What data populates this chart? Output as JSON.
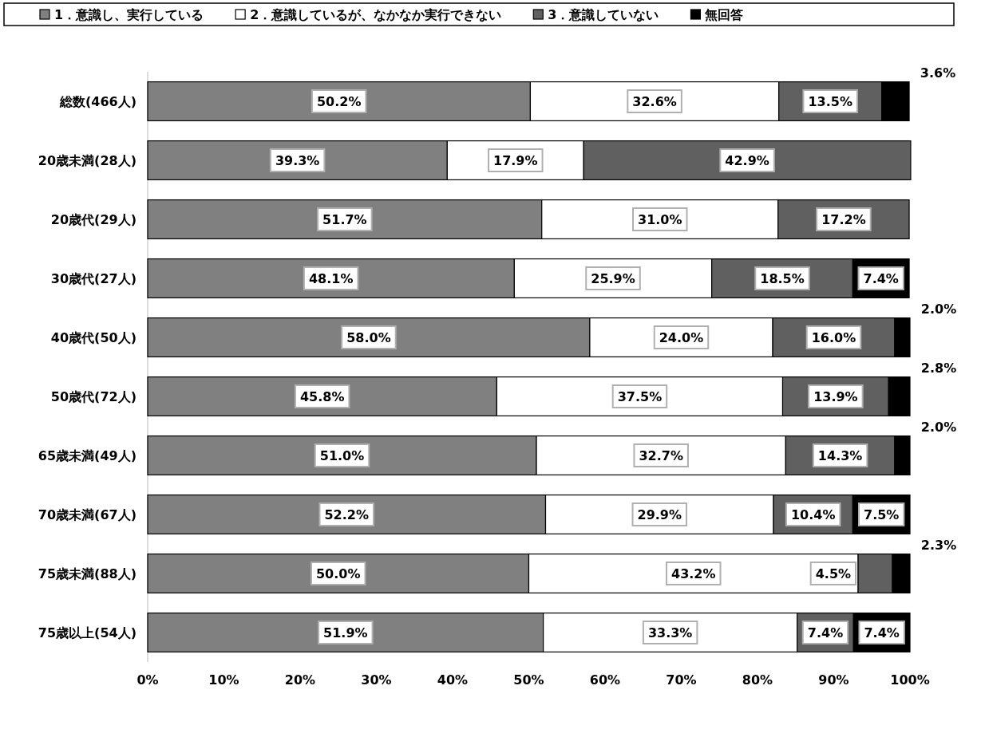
{
  "chart_data": {
    "type": "bar",
    "orientation": "horizontal",
    "stacked": true,
    "legend": "top",
    "categories": [
      "総数(466人)",
      "20歳未満(28人)",
      "20歳代(29人)",
      "30歳代(27人)",
      "40歳代(50人)",
      "50歳代(72人)",
      "65歳未満(49人)",
      "70歳未満(67人)",
      "75歳未満(88人)",
      "75歳以上(54人)"
    ],
    "xlim": [
      0,
      100
    ],
    "xticks": [
      {
        "value": 0,
        "label": "0%"
      },
      {
        "value": 10,
        "label": "10%"
      },
      {
        "value": 20,
        "label": "20%"
      },
      {
        "value": 30,
        "label": "30%"
      },
      {
        "value": 40,
        "label": "40%"
      },
      {
        "value": 50,
        "label": "50%"
      },
      {
        "value": 60,
        "label": "60%"
      },
      {
        "value": 70,
        "label": "70%"
      },
      {
        "value": 80,
        "label": "80%"
      },
      {
        "value": 90,
        "label": "90%"
      },
      {
        "value": 100,
        "label": "100%"
      }
    ],
    "series": [
      {
        "name": "1．意識し、実行している",
        "color": "#808080",
        "values": [
          50.2,
          39.3,
          51.7,
          48.1,
          58.0,
          45.8,
          51.0,
          52.2,
          50.0,
          51.9
        ],
        "value_labels": [
          "50.2%",
          "39.3%",
          "51.7%",
          "48.1%",
          "58.0%",
          "45.8%",
          "51.0%",
          "52.2%",
          "50.0%",
          "51.9%"
        ]
      },
      {
        "name": "2．意識しているが、なかなか実行できない",
        "color": "#ffffff",
        "values": [
          32.6,
          17.9,
          31.0,
          25.9,
          24.0,
          37.5,
          32.7,
          29.9,
          43.2,
          33.3
        ],
        "value_labels": [
          "32.6%",
          "17.9%",
          "31.0%",
          "25.9%",
          "24.0%",
          "37.5%",
          "32.7%",
          "29.9%",
          "43.2%",
          "33.3%"
        ]
      },
      {
        "name": "3．意識していない",
        "color": "#606060",
        "values": [
          13.5,
          42.9,
          17.2,
          18.5,
          16.0,
          13.9,
          14.3,
          10.4,
          4.5,
          7.4
        ],
        "value_labels": [
          "13.5%",
          "42.9%",
          "17.2%",
          "18.5%",
          "16.0%",
          "13.9%",
          "14.3%",
          "10.4%",
          "4.5%",
          "7.4%"
        ]
      },
      {
        "name": "無回答",
        "color": "#000000",
        "values": [
          3.6,
          null,
          null,
          7.4,
          2.0,
          2.8,
          2.0,
          7.5,
          2.3,
          7.4
        ],
        "value_labels": [
          "3.6%",
          null,
          null,
          "7.4%",
          "2.0%",
          "2.8%",
          "2.0%",
          "7.5%",
          "2.3%",
          "7.4%"
        ]
      }
    ]
  }
}
